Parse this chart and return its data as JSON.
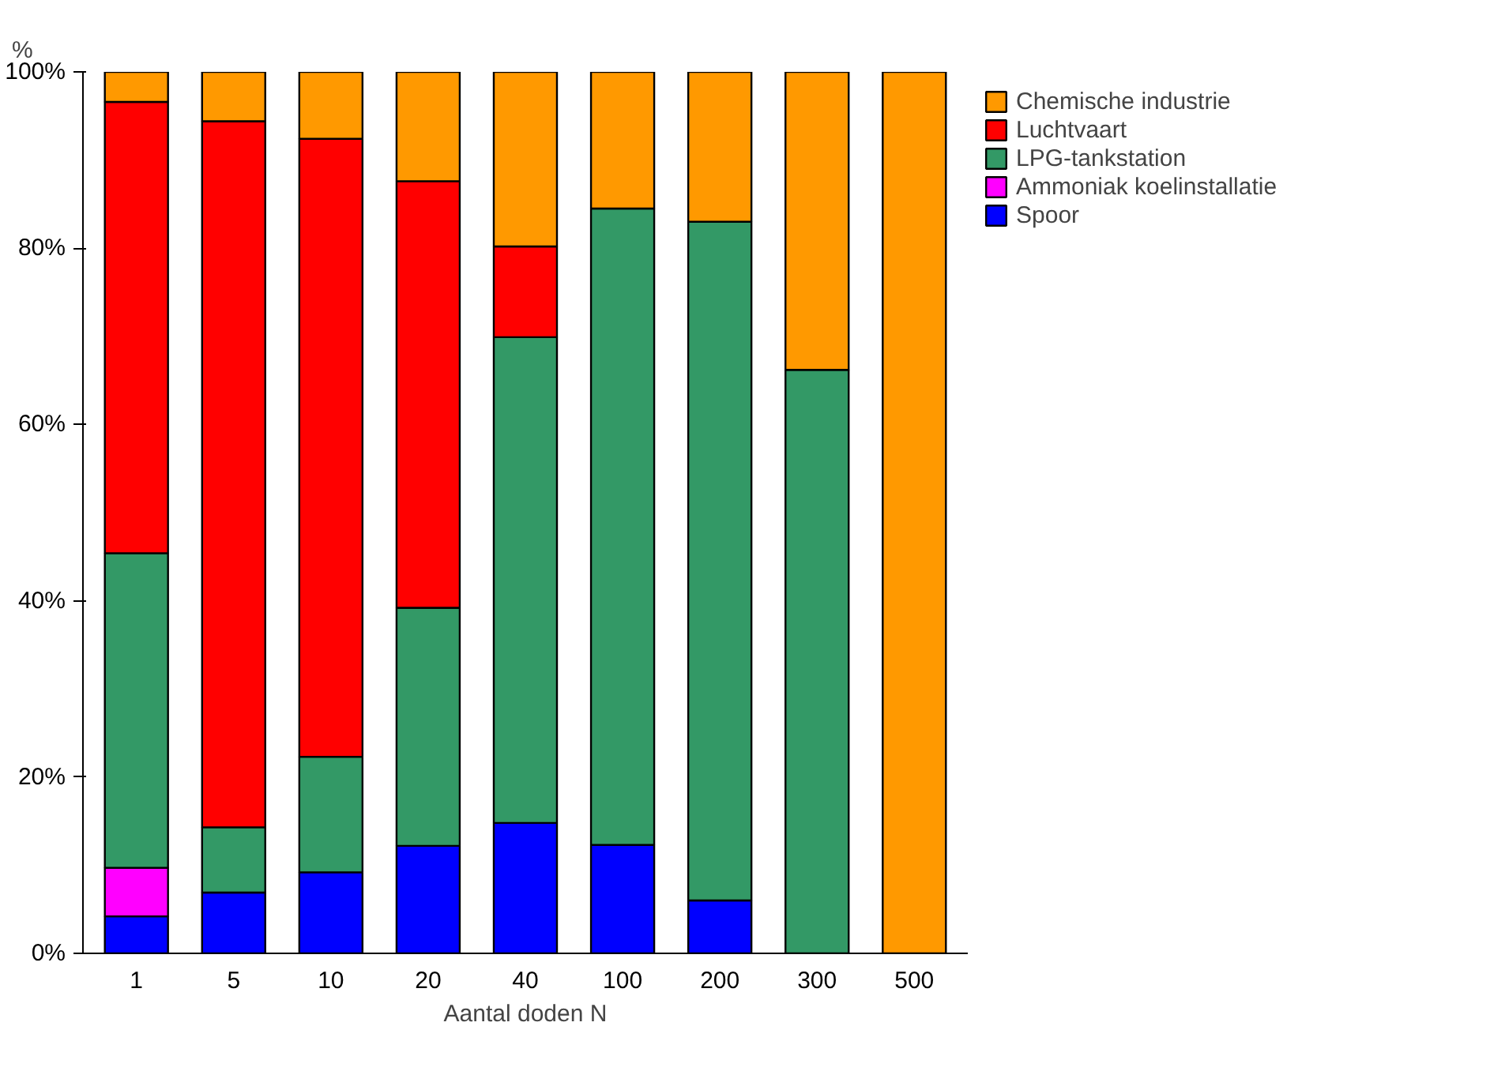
{
  "chart_data": {
    "type": "bar",
    "stacked": true,
    "xlabel": "Aantal doden N",
    "ylabel": "%",
    "categories": [
      "1",
      "5",
      "10",
      "20",
      "40",
      "100",
      "200",
      "300",
      "500"
    ],
    "series": [
      {
        "name": "Spoor",
        "color": "#0000ff",
        "values": [
          4.2,
          6.9,
          9.2,
          12.2,
          14.8,
          12.3,
          6.0,
          0,
          0
        ]
      },
      {
        "name": "Ammoniak koelinstallatie",
        "color": "#ff00ff",
        "values": [
          5.5,
          0,
          0,
          0,
          0,
          0,
          0,
          0,
          0
        ]
      },
      {
        "name": "LPG-tankstation",
        "color": "#339966",
        "values": [
          35.7,
          7.4,
          13.1,
          27.0,
          55.1,
          72.2,
          77.0,
          66.2,
          0
        ]
      },
      {
        "name": "Luchtvaart",
        "color": "#ff0000",
        "values": [
          51.2,
          80.1,
          70.1,
          48.4,
          10.3,
          0,
          0,
          0,
          0
        ]
      },
      {
        "name": "Chemische industrie",
        "color": "#ff9900",
        "values": [
          3.4,
          5.6,
          7.6,
          12.4,
          19.8,
          15.5,
          17.0,
          33.8,
          100
        ]
      }
    ],
    "ylim": [
      0,
      100
    ],
    "yticks": [
      {
        "value": 0,
        "label": "0%"
      },
      {
        "value": 20,
        "label": "20%"
      },
      {
        "value": 40,
        "label": "40%"
      },
      {
        "value": 60,
        "label": "60%"
      },
      {
        "value": 80,
        "label": "80%"
      },
      {
        "value": 100,
        "label": "100%"
      }
    ],
    "grid": false,
    "legend": "right"
  }
}
